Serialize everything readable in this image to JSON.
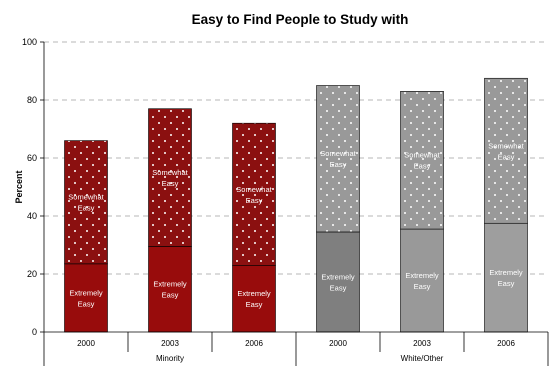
{
  "chart_data": {
    "type": "bar",
    "stacked": true,
    "title": "Easy to Find People to Study with",
    "ylabel": "Percent",
    "xlabel": "",
    "ylim": [
      0,
      100
    ],
    "yticks": [
      0,
      20,
      40,
      60,
      80,
      100
    ],
    "grid": true,
    "legend": "none",
    "groups": [
      {
        "name": "Minority",
        "categories": [
          "2000",
          "2003",
          "2006"
        ]
      },
      {
        "name": "White/Other",
        "categories": [
          "2000",
          "2003",
          "2006"
        ]
      }
    ],
    "series": [
      {
        "name": "Extremely Easy",
        "label_lines": [
          "Extremely",
          "Easy"
        ],
        "values": [
          23.5,
          29.5,
          23,
          34.5,
          35.5,
          37.5
        ]
      },
      {
        "name": "Somewhat Easy",
        "label_lines": [
          "Somewhat",
          "Easy"
        ],
        "values": [
          42.5,
          47.5,
          49,
          50.5,
          47.5,
          50
        ]
      }
    ],
    "colors": {
      "Minority": {
        "Extremely Easy": "#980c0c",
        "Somewhat Easy": "#8b1010"
      },
      "White/Other": {
        "Extremely Easy": [
          "#7f7f7f",
          "#999999",
          "#9e9e9e"
        ],
        "Somewhat Easy": "#999999"
      },
      "dots": "#ffffff",
      "grid": "#a0a0a0"
    }
  }
}
